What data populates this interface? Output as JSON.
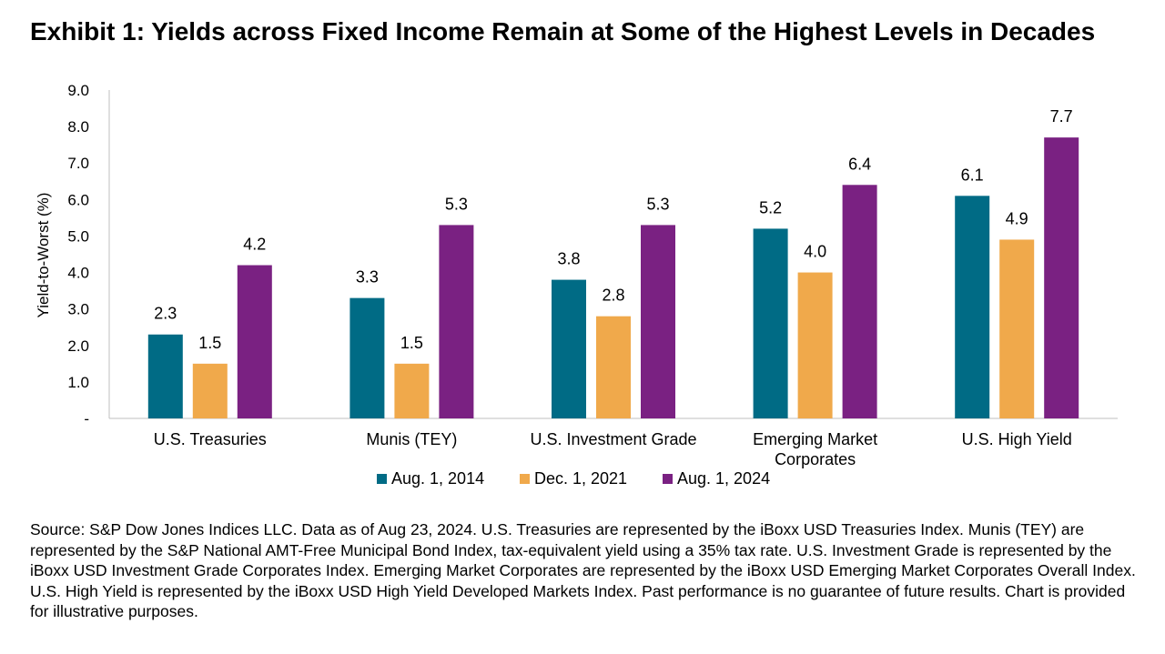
{
  "title": "Exhibit 1: Yields across Fixed Income Remain at Some of the Highest Levels in Decades",
  "source": "Source: S&P Dow Jones Indices LLC. Data as of Aug 23, 2024. U.S. Treasuries are represented by the iBoxx USD Treasuries Index. Munis (TEY) are represented by the S&P National AMT-Free Municipal Bond Index, tax-equivalent yield using a 35% tax rate. U.S. Investment Grade is represented by the iBoxx USD Investment Grade Corporates Index. Emerging Market Corporates are represented by the iBoxx USD Emerging Market Corporates Overall Index. U.S. High Yield is represented by the iBoxx USD High Yield Developed Markets Index. Past performance is no guarantee of future results. Chart is provided for illustrative purposes.",
  "chart_data": {
    "type": "bar",
    "title": "Exhibit 1: Yields across Fixed Income Remain at Some of the Highest Levels in Decades",
    "xlabel": "",
    "ylabel": "Yield-to-Worst (%)",
    "ylim": [
      0,
      9
    ],
    "yticks": [
      "-",
      "1.0",
      "2.0",
      "3.0",
      "4.0",
      "5.0",
      "6.0",
      "7.0",
      "8.0",
      "9.0"
    ],
    "grid": false,
    "legend_position": "bottom",
    "categories": [
      [
        "U.S. Treasuries"
      ],
      [
        "Munis (TEY)"
      ],
      [
        "U.S. Investment Grade"
      ],
      [
        "Emerging Market",
        "Corporates"
      ],
      [
        "U.S. High Yield"
      ]
    ],
    "series": [
      {
        "name": "Aug. 1, 2014",
        "color": "#006B85",
        "values": [
          2.3,
          3.3,
          3.8,
          5.2,
          6.1
        ]
      },
      {
        "name": "Dec. 1, 2021",
        "color": "#F0A94B",
        "values": [
          1.5,
          1.5,
          2.8,
          4.0,
          4.9
        ]
      },
      {
        "name": "Aug. 1, 2024",
        "color": "#7A2182",
        "values": [
          4.2,
          5.3,
          5.3,
          6.4,
          7.7
        ]
      }
    ]
  }
}
